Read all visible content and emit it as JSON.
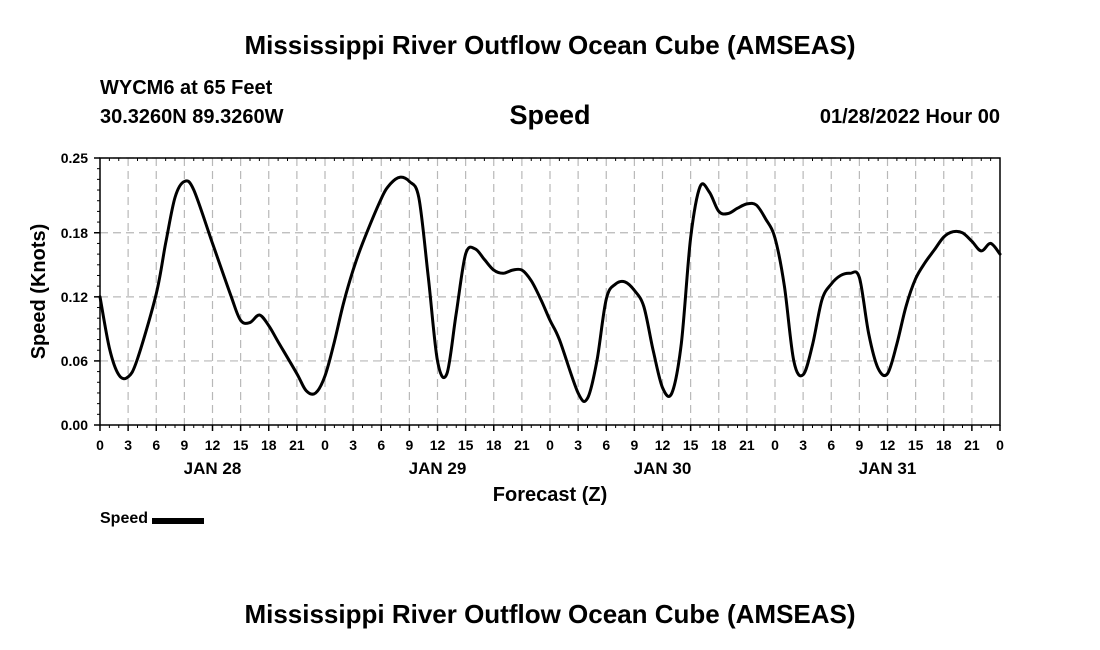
{
  "header": {
    "title": "Mississippi River Outflow Ocean Cube (AMSEAS)",
    "station": "WYCM6 at 65 Feet",
    "coords": "30.3260N  89.3260W",
    "variable": "Speed",
    "datetime": "01/28/2022 Hour 00"
  },
  "footer": {
    "title": "Mississippi River Outflow Ocean Cube (AMSEAS)"
  },
  "legend": {
    "label": "Speed"
  },
  "chart_data": {
    "type": "line",
    "xlabel": "Forecast (Z)",
    "ylabel": "Speed (Knots)",
    "ylim": [
      0,
      0.25
    ],
    "xlim": [
      0,
      96
    ],
    "yticks": [
      "0.00",
      "0.06",
      "0.12",
      "0.18",
      "0.25"
    ],
    "ytick_values": [
      0,
      0.06,
      0.12,
      0.18,
      0.25
    ],
    "xtick_labels": [
      "0",
      "3",
      "6",
      "9",
      "12",
      "15",
      "18",
      "21",
      "0",
      "3",
      "6",
      "9",
      "12",
      "15",
      "18",
      "21",
      "0",
      "3",
      "6",
      "9",
      "12",
      "15",
      "18",
      "21",
      "0",
      "3",
      "6",
      "9",
      "12",
      "15",
      "18",
      "21",
      "0"
    ],
    "day_labels": [
      {
        "label": "JAN 28",
        "hour": 12
      },
      {
        "label": "JAN 29",
        "hour": 36
      },
      {
        "label": "JAN 30",
        "hour": 60
      },
      {
        "label": "JAN 31",
        "hour": 84
      }
    ],
    "grid": true,
    "series": [
      {
        "name": "Speed",
        "color": "#000000",
        "x": [
          0,
          1,
          2,
          3,
          4,
          6,
          7,
          8,
          9,
          10,
          12,
          14,
          15,
          16,
          17,
          18,
          19,
          21,
          22,
          23,
          24,
          25,
          26,
          27,
          28,
          30,
          31,
          32,
          33,
          34,
          35,
          36,
          37,
          38,
          39,
          40,
          41,
          42,
          43,
          44,
          45,
          46,
          47,
          48,
          49,
          51,
          52,
          53,
          54,
          55,
          56,
          57,
          58,
          59,
          60,
          61,
          62,
          63,
          64,
          65,
          66,
          67,
          68,
          69,
          70,
          71,
          72,
          73,
          74,
          75,
          76,
          77,
          78,
          79,
          80,
          81,
          82,
          83,
          84,
          85,
          86,
          87,
          88,
          89,
          90,
          91,
          92,
          93,
          94,
          95,
          96
        ],
        "y": [
          0.12,
          0.072,
          0.047,
          0.045,
          0.062,
          0.123,
          0.17,
          0.213,
          0.228,
          0.22,
          0.17,
          0.12,
          0.098,
          0.096,
          0.103,
          0.093,
          0.078,
          0.048,
          0.032,
          0.03,
          0.046,
          0.078,
          0.115,
          0.145,
          0.17,
          0.212,
          0.226,
          0.232,
          0.228,
          0.213,
          0.14,
          0.06,
          0.048,
          0.105,
          0.16,
          0.165,
          0.155,
          0.145,
          0.142,
          0.145,
          0.145,
          0.135,
          0.118,
          0.098,
          0.08,
          0.03,
          0.025,
          0.06,
          0.118,
          0.132,
          0.134,
          0.126,
          0.111,
          0.07,
          0.035,
          0.03,
          0.076,
          0.175,
          0.223,
          0.218,
          0.2,
          0.198,
          0.203,
          0.207,
          0.206,
          0.193,
          0.175,
          0.13,
          0.06,
          0.047,
          0.075,
          0.117,
          0.132,
          0.14,
          0.142,
          0.138,
          0.085,
          0.053,
          0.048,
          0.076,
          0.112,
          0.137,
          0.152,
          0.164,
          0.176,
          0.181,
          0.18,
          0.172,
          0.163,
          0.17,
          0.16
        ]
      }
    ]
  }
}
